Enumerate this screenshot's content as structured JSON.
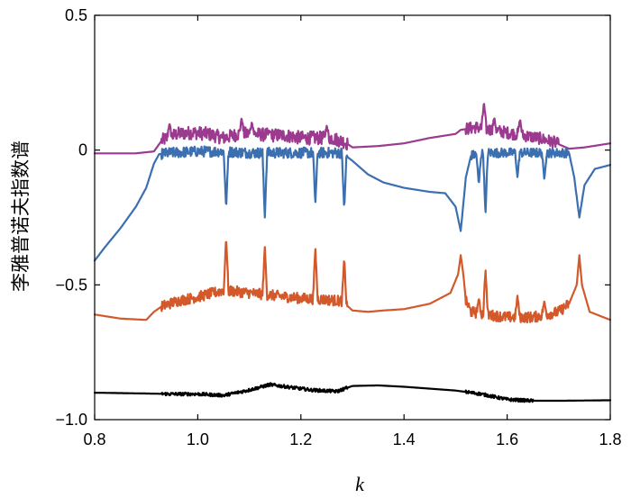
{
  "chart_data": {
    "type": "line",
    "xlabel": "k",
    "ylabel": "李雅普诺夫指数谱",
    "xlim": [
      0.8,
      1.8
    ],
    "ylim": [
      -1.0,
      0.5
    ],
    "xticks": [
      "0.8",
      "1.0",
      "1.2",
      "1.4",
      "1.6",
      "1.8"
    ],
    "xtick_values": [
      0.8,
      1.0,
      1.2,
      1.4,
      1.6,
      1.8
    ],
    "yticks": [
      "0.5",
      "0",
      "-0.5",
      "-1.0"
    ],
    "ytick_values": [
      0.5,
      0,
      -0.5,
      -1.0
    ],
    "grid": false,
    "series": [
      {
        "color": "#9b3a8f",
        "base": [
          [
            0.8,
            -0.012
          ],
          [
            0.88,
            -0.012
          ],
          [
            0.915,
            -0.005
          ],
          [
            0.93,
            0.035
          ],
          [
            0.96,
            0.06
          ],
          [
            0.99,
            0.065
          ],
          [
            1.02,
            0.06
          ],
          [
            1.05,
            0.045
          ],
          [
            1.08,
            0.06
          ],
          [
            1.11,
            0.06
          ],
          [
            1.14,
            0.055
          ],
          [
            1.17,
            0.055
          ],
          [
            1.2,
            0.045
          ],
          [
            1.23,
            0.045
          ],
          [
            1.26,
            0.045
          ],
          [
            1.285,
            0.03
          ],
          [
            1.3,
            0.01
          ],
          [
            1.35,
            0.015
          ],
          [
            1.4,
            0.025
          ],
          [
            1.45,
            0.045
          ],
          [
            1.5,
            0.06
          ],
          [
            1.51,
            0.075
          ],
          [
            1.54,
            0.085
          ],
          [
            1.57,
            0.075
          ],
          [
            1.6,
            0.065
          ],
          [
            1.63,
            0.055
          ],
          [
            1.66,
            0.045
          ],
          [
            1.69,
            0.03
          ],
          [
            1.72,
            0.005
          ],
          [
            1.75,
            0.01
          ],
          [
            1.8,
            0.025
          ]
        ],
        "noise": [
          [
            0.93,
            1.29,
            0.05
          ],
          [
            1.52,
            1.7,
            0.045
          ]
        ],
        "spikes": [
          [
            0.945,
            0.1
          ],
          [
            1.085,
            0.12
          ],
          [
            1.105,
            0.105
          ],
          [
            1.14,
            0.07
          ],
          [
            1.25,
            0.09
          ],
          [
            1.555,
            0.18
          ],
          [
            1.575,
            0.12
          ],
          [
            1.625,
            0.115
          ]
        ]
      },
      {
        "color": "#3b6fb0",
        "base": [
          [
            0.8,
            -0.41
          ],
          [
            0.82,
            -0.36
          ],
          [
            0.85,
            -0.29
          ],
          [
            0.88,
            -0.21
          ],
          [
            0.9,
            -0.14
          ],
          [
            0.915,
            -0.05
          ],
          [
            0.925,
            -0.015
          ],
          [
            0.95,
            -0.01
          ],
          [
            1.0,
            -0.005
          ],
          [
            1.05,
            -0.005
          ],
          [
            1.1,
            -0.01
          ],
          [
            1.15,
            -0.01
          ],
          [
            1.2,
            -0.01
          ],
          [
            1.25,
            -0.01
          ],
          [
            1.28,
            -0.01
          ],
          [
            1.3,
            -0.04
          ],
          [
            1.33,
            -0.09
          ],
          [
            1.36,
            -0.12
          ],
          [
            1.4,
            -0.14
          ],
          [
            1.45,
            -0.155
          ],
          [
            1.48,
            -0.16
          ],
          [
            1.5,
            -0.21
          ],
          [
            1.51,
            -0.3
          ],
          [
            1.52,
            -0.1
          ],
          [
            1.53,
            -0.02
          ],
          [
            1.56,
            -0.01
          ],
          [
            1.6,
            -0.01
          ],
          [
            1.65,
            -0.01
          ],
          [
            1.7,
            -0.01
          ],
          [
            1.72,
            -0.01
          ],
          [
            1.73,
            -0.1
          ],
          [
            1.74,
            -0.25
          ],
          [
            1.75,
            -0.13
          ],
          [
            1.77,
            -0.07
          ],
          [
            1.8,
            -0.055
          ]
        ],
        "noise": [
          [
            0.93,
            1.29,
            0.04
          ],
          [
            1.53,
            1.72,
            0.035
          ]
        ],
        "spikes": [
          [
            1.055,
            -0.22
          ],
          [
            1.13,
            -0.25
          ],
          [
            1.228,
            -0.2
          ],
          [
            1.284,
            -0.22
          ],
          [
            1.545,
            -0.13
          ],
          [
            1.558,
            -0.24
          ],
          [
            1.62,
            -0.1
          ],
          [
            1.672,
            -0.11
          ]
        ]
      },
      {
        "color": "#d4592a",
        "base": [
          [
            0.8,
            -0.61
          ],
          [
            0.85,
            -0.625
          ],
          [
            0.9,
            -0.63
          ],
          [
            0.915,
            -0.6
          ],
          [
            0.93,
            -0.58
          ],
          [
            0.96,
            -0.56
          ],
          [
            1.0,
            -0.545
          ],
          [
            1.05,
            -0.52
          ],
          [
            1.1,
            -0.53
          ],
          [
            1.15,
            -0.54
          ],
          [
            1.2,
            -0.55
          ],
          [
            1.25,
            -0.555
          ],
          [
            1.28,
            -0.56
          ],
          [
            1.3,
            -0.595
          ],
          [
            1.33,
            -0.6
          ],
          [
            1.36,
            -0.595
          ],
          [
            1.4,
            -0.59
          ],
          [
            1.45,
            -0.57
          ],
          [
            1.49,
            -0.53
          ],
          [
            1.505,
            -0.46
          ],
          [
            1.51,
            -0.39
          ],
          [
            1.515,
            -0.46
          ],
          [
            1.52,
            -0.56
          ],
          [
            1.53,
            -0.6
          ],
          [
            1.56,
            -0.61
          ],
          [
            1.6,
            -0.62
          ],
          [
            1.65,
            -0.62
          ],
          [
            1.7,
            -0.6
          ],
          [
            1.72,
            -0.57
          ],
          [
            1.735,
            -0.5
          ],
          [
            1.74,
            -0.39
          ],
          [
            1.745,
            -0.5
          ],
          [
            1.76,
            -0.6
          ],
          [
            1.8,
            -0.63
          ]
        ],
        "noise": [
          [
            0.93,
            1.29,
            0.04
          ],
          [
            1.52,
            1.72,
            0.04
          ]
        ],
        "spikes": [
          [
            1.055,
            -0.32
          ],
          [
            1.13,
            -0.36
          ],
          [
            1.228,
            -0.36
          ],
          [
            1.284,
            -0.4
          ],
          [
            1.545,
            -0.55
          ],
          [
            1.558,
            -0.44
          ],
          [
            1.62,
            -0.54
          ],
          [
            1.672,
            -0.56
          ]
        ]
      },
      {
        "color": "#000000",
        "base": [
          [
            0.8,
            -0.9
          ],
          [
            0.9,
            -0.903
          ],
          [
            0.95,
            -0.905
          ],
          [
            1.0,
            -0.905
          ],
          [
            1.05,
            -0.91
          ],
          [
            1.1,
            -0.89
          ],
          [
            1.14,
            -0.87
          ],
          [
            1.18,
            -0.88
          ],
          [
            1.22,
            -0.89
          ],
          [
            1.27,
            -0.895
          ],
          [
            1.3,
            -0.875
          ],
          [
            1.35,
            -0.873
          ],
          [
            1.4,
            -0.878
          ],
          [
            1.45,
            -0.885
          ],
          [
            1.5,
            -0.892
          ],
          [
            1.55,
            -0.905
          ],
          [
            1.6,
            -0.925
          ],
          [
            1.65,
            -0.93
          ],
          [
            1.7,
            -0.93
          ],
          [
            1.8,
            -0.928
          ]
        ],
        "noise": [
          [
            0.93,
            1.29,
            0.012
          ],
          [
            1.52,
            1.65,
            0.012
          ]
        ],
        "spikes": []
      }
    ]
  }
}
